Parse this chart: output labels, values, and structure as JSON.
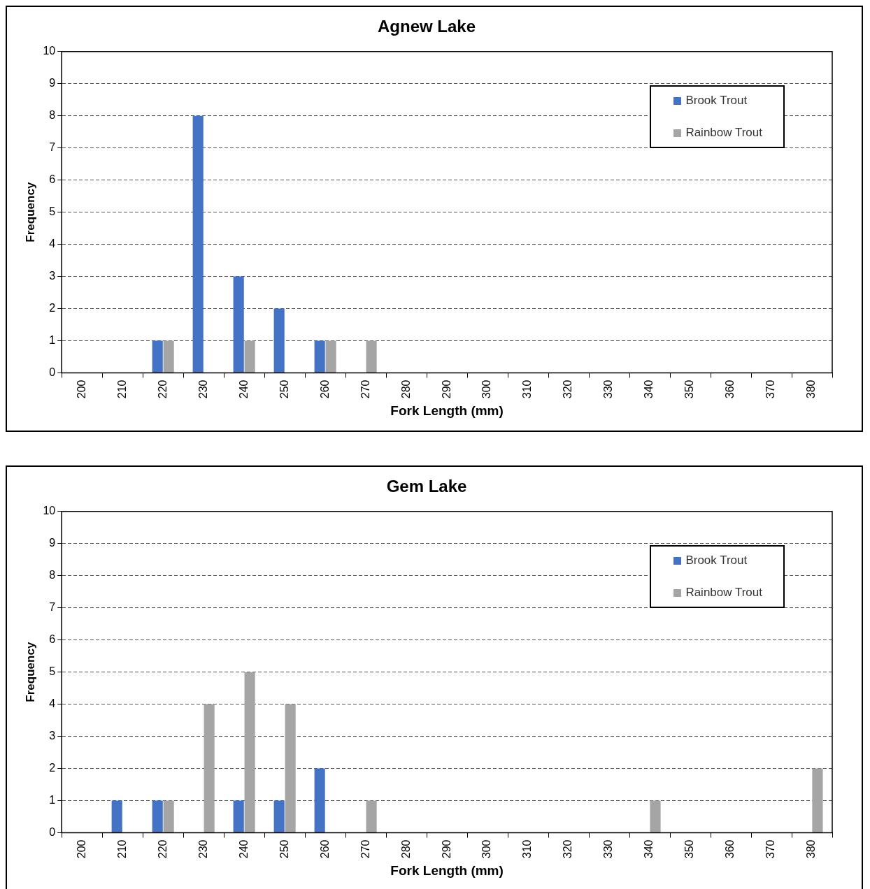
{
  "chart_data": [
    {
      "type": "bar",
      "title": "Agnew Lake",
      "xlabel": "Fork Length (mm)",
      "ylabel": "Frequency",
      "categories": [
        "200",
        "210",
        "220",
        "230",
        "240",
        "250",
        "260",
        "270",
        "280",
        "290",
        "300",
        "310",
        "320",
        "330",
        "340",
        "350",
        "360",
        "370",
        "380"
      ],
      "series": [
        {
          "name": "Brook Trout",
          "color": "#4472c4",
          "values": [
            0,
            0,
            1,
            8,
            3,
            2,
            1,
            0,
            0,
            0,
            0,
            0,
            0,
            0,
            0,
            0,
            0,
            0,
            0
          ]
        },
        {
          "name": "Rainbow Trout",
          "color": "#a5a5a5",
          "values": [
            0,
            0,
            1,
            0,
            1,
            0,
            1,
            1,
            0,
            0,
            0,
            0,
            0,
            0,
            0,
            0,
            0,
            0,
            0
          ]
        }
      ],
      "ylim": [
        0,
        10
      ],
      "yticks": [
        0,
        1,
        2,
        3,
        4,
        5,
        6,
        7,
        8,
        9,
        10
      ],
      "grid": "y",
      "legend": "top right"
    },
    {
      "type": "bar",
      "title": "Gem Lake",
      "xlabel": "Fork Length (mm)",
      "ylabel": "Frequency",
      "categories": [
        "200",
        "210",
        "220",
        "230",
        "240",
        "250",
        "260",
        "270",
        "280",
        "290",
        "300",
        "310",
        "320",
        "330",
        "340",
        "350",
        "360",
        "370",
        "380"
      ],
      "series": [
        {
          "name": "Brook Trout",
          "color": "#4472c4",
          "values": [
            0,
            1,
            1,
            0,
            1,
            1,
            2,
            0,
            0,
            0,
            0,
            0,
            0,
            0,
            0,
            0,
            0,
            0,
            0
          ]
        },
        {
          "name": "Rainbow Trout",
          "color": "#a5a5a5",
          "values": [
            0,
            0,
            1,
            4,
            5,
            4,
            0,
            1,
            0,
            0,
            0,
            0,
            0,
            0,
            1,
            0,
            0,
            0,
            2
          ]
        }
      ],
      "ylim": [
        0,
        10
      ],
      "yticks": [
        0,
        1,
        2,
        3,
        4,
        5,
        6,
        7,
        8,
        9,
        10
      ],
      "grid": "y",
      "legend": "top right"
    }
  ]
}
